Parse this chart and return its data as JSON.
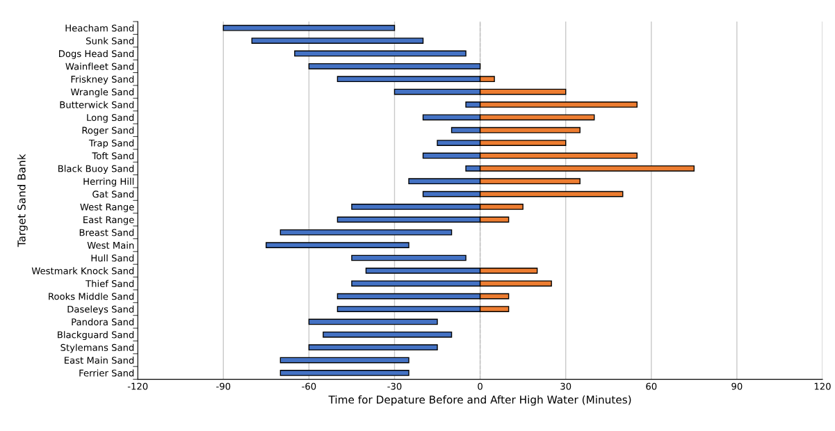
{
  "chart_data": {
    "type": "bar",
    "orientation": "horizontal",
    "xlabel": "Time for Depature Before and After High Water (Minutes)",
    "ylabel": "Target Sand Bank",
    "categories": [
      "Heacham Sand",
      "Sunk Sand",
      "Dogs Head Sand",
      "Wainfleet Sand",
      "Friskney Sand",
      "Wrangle Sand",
      "Butterwick Sand",
      "Long Sand",
      "Roger Sand",
      "Trap Sand",
      "Toft Sand",
      "Black Buoy Sand",
      "Herring Hill",
      "Gat Sand",
      "West Range",
      "East Range",
      "Breast Sand",
      "West Main",
      "Hull Sand",
      "Westmark Knock Sand",
      "Thief Sand",
      "Rooks Middle Sand",
      "Daseleys Sand",
      "Pandora Sand",
      "Blackguard Sand",
      "Stylemans Sand",
      "East Main Sand",
      "Ferrier Sand"
    ],
    "series": [
      {
        "color": "#4472c4",
        "base": [
          -90,
          -80,
          -65,
          -60,
          -50,
          -30,
          -5,
          -20,
          -10,
          -15,
          -20,
          -5,
          -25,
          -20,
          -45,
          -50,
          -70,
          -75,
          -45,
          -40,
          -45,
          -50,
          -50,
          -60,
          -55,
          -60,
          -70,
          -70
        ],
        "values": [
          60,
          60,
          60,
          60,
          50,
          30,
          5,
          20,
          10,
          15,
          20,
          5,
          25,
          20,
          45,
          50,
          60,
          50,
          40,
          40,
          45,
          50,
          50,
          45,
          45,
          45,
          45,
          45
        ]
      },
      {
        "color": "#ed7d31",
        "base": [
          null,
          null,
          null,
          null,
          0,
          0,
          0,
          0,
          0,
          0,
          0,
          0,
          0,
          0,
          0,
          0,
          null,
          null,
          null,
          0,
          0,
          0,
          0,
          null,
          null,
          null,
          null,
          null
        ],
        "values": [
          null,
          null,
          null,
          null,
          5,
          30,
          55,
          40,
          35,
          30,
          55,
          75,
          35,
          50,
          15,
          10,
          null,
          null,
          null,
          20,
          25,
          10,
          10,
          null,
          null,
          null,
          null,
          null
        ]
      }
    ],
    "xlim": [
      -120,
      120
    ],
    "xticks": [
      -120,
      -90,
      -60,
      -30,
      0,
      30,
      60,
      90,
      120
    ],
    "grid": "x",
    "ref_lines": [
      {
        "axis": "x",
        "value": 0,
        "color": "#bfbfbf",
        "line_style": "dashed"
      }
    ]
  }
}
